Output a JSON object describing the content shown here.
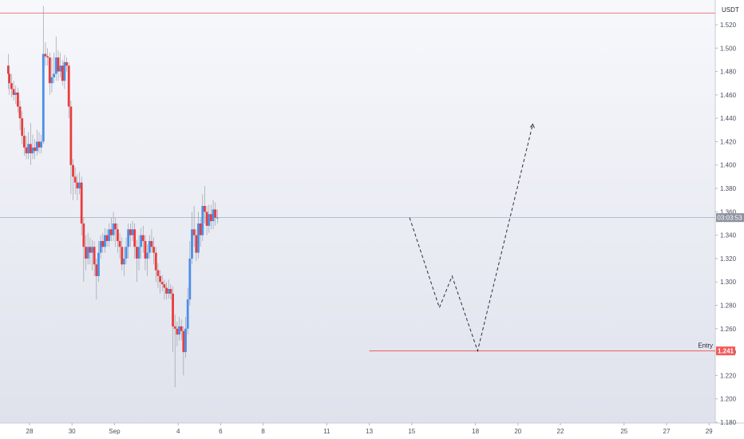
{
  "chart_data": {
    "type": "candlestick",
    "currency": "USDT",
    "y_range": [
      1.18,
      1.535
    ],
    "y_ticks": [
      "1.180",
      "1.200",
      "1.220",
      "1.240",
      "1.260",
      "1.280",
      "1.300",
      "1.320",
      "1.340",
      "1.360",
      "1.380",
      "1.400",
      "1.420",
      "1.440",
      "1.460",
      "1.480",
      "1.500",
      "1.520"
    ],
    "x_ticks": [
      {
        "label": "28",
        "t": 0
      },
      {
        "label": "30",
        "t": 2
      },
      {
        "label": "Sep",
        "t": 4
      },
      {
        "label": "4",
        "t": 7
      },
      {
        "label": "6",
        "t": 9
      },
      {
        "label": "8",
        "t": 11
      },
      {
        "label": "11",
        "t": 14
      },
      {
        "label": "13",
        "t": 16
      },
      {
        "label": "15",
        "t": 18
      },
      {
        "label": "18",
        "t": 21
      },
      {
        "label": "20",
        "t": 23
      },
      {
        "label": "22",
        "t": 25
      },
      {
        "label": "25",
        "t": 28
      },
      {
        "label": "27",
        "t": 30
      },
      {
        "label": "29",
        "t": 32
      }
    ],
    "current_price": {
      "label": "03:03:53",
      "value": 1.355
    },
    "resistance_line": {
      "value": 1.53
    },
    "entry": {
      "label": "Entry",
      "price_label": "1.241",
      "value": 1.241,
      "t_start": 16.0
    },
    "projection": [
      {
        "t": 17.9,
        "v": 1.355
      },
      {
        "t": 19.3,
        "v": 1.278
      },
      {
        "t": 19.9,
        "v": 1.305
      },
      {
        "t": 21.1,
        "v": 1.241
      },
      {
        "t": 23.7,
        "v": 1.435
      }
    ],
    "candles": [
      [
        -1.0,
        1.485,
        1.478,
        1.495,
        1.465
      ],
      [
        -0.95,
        1.478,
        1.47,
        1.485,
        1.46
      ],
      [
        -0.85,
        1.47,
        1.465,
        1.478,
        1.458
      ],
      [
        -0.75,
        1.465,
        1.46,
        1.472,
        1.455
      ],
      [
        -0.65,
        1.46,
        1.462,
        1.468,
        1.452
      ],
      [
        -0.55,
        1.462,
        1.45,
        1.466,
        1.445
      ],
      [
        -0.45,
        1.45,
        1.44,
        1.455,
        1.43
      ],
      [
        -0.35,
        1.44,
        1.425,
        1.446,
        1.418
      ],
      [
        -0.25,
        1.425,
        1.415,
        1.432,
        1.408
      ],
      [
        -0.15,
        1.415,
        1.41,
        1.425,
        1.405
      ],
      [
        -0.05,
        1.41,
        1.418,
        1.428,
        1.405
      ],
      [
        0.05,
        1.418,
        1.41,
        1.436,
        1.4
      ],
      [
        0.15,
        1.41,
        1.415,
        1.426,
        1.405
      ],
      [
        0.25,
        1.415,
        1.412,
        1.422,
        1.405
      ],
      [
        0.35,
        1.412,
        1.42,
        1.43,
        1.408
      ],
      [
        0.45,
        1.42,
        1.415,
        1.428,
        1.41
      ],
      [
        0.55,
        1.415,
        1.42,
        1.426,
        1.41
      ],
      [
        0.65,
        1.42,
        1.495,
        1.536,
        1.418
      ],
      [
        0.75,
        1.495,
        1.493,
        1.505,
        1.485
      ],
      [
        0.85,
        1.493,
        1.492,
        1.5,
        1.485
      ],
      [
        0.95,
        1.492,
        1.47,
        1.496,
        1.46
      ],
      [
        1.05,
        1.47,
        1.475,
        1.492,
        1.462
      ],
      [
        1.15,
        1.475,
        1.478,
        1.496,
        1.47
      ],
      [
        1.25,
        1.478,
        1.492,
        1.51,
        1.472
      ],
      [
        1.35,
        1.492,
        1.48,
        1.498,
        1.472
      ],
      [
        1.45,
        1.48,
        1.485,
        1.496,
        1.475
      ],
      [
        1.55,
        1.485,
        1.472,
        1.49,
        1.468
      ],
      [
        1.65,
        1.472,
        1.488,
        1.494,
        1.465
      ],
      [
        1.75,
        1.488,
        1.485,
        1.492,
        1.48
      ],
      [
        1.85,
        1.485,
        1.45,
        1.488,
        1.44
      ],
      [
        1.95,
        1.45,
        1.4,
        1.455,
        1.375
      ],
      [
        2.05,
        1.4,
        1.39,
        1.405,
        1.37
      ],
      [
        2.15,
        1.39,
        1.385,
        1.398,
        1.375
      ],
      [
        2.25,
        1.385,
        1.38,
        1.392,
        1.37
      ],
      [
        2.35,
        1.38,
        1.385,
        1.394,
        1.375
      ],
      [
        2.45,
        1.385,
        1.35,
        1.39,
        1.34
      ],
      [
        2.55,
        1.35,
        1.33,
        1.355,
        1.3
      ],
      [
        2.65,
        1.33,
        1.32,
        1.34,
        1.31
      ],
      [
        2.75,
        1.32,
        1.33,
        1.342,
        1.315
      ],
      [
        2.85,
        1.33,
        1.325,
        1.338,
        1.315
      ],
      [
        2.95,
        1.325,
        1.33,
        1.336,
        1.31
      ],
      [
        3.05,
        1.33,
        1.315,
        1.335,
        1.305
      ],
      [
        3.15,
        1.315,
        1.305,
        1.32,
        1.285
      ],
      [
        3.25,
        1.305,
        1.325,
        1.335,
        1.3
      ],
      [
        3.35,
        1.325,
        1.335,
        1.34,
        1.32
      ],
      [
        3.45,
        1.335,
        1.33,
        1.342,
        1.325
      ],
      [
        3.55,
        1.33,
        1.34,
        1.346,
        1.325
      ],
      [
        3.65,
        1.34,
        1.335,
        1.345,
        1.33
      ],
      [
        3.75,
        1.335,
        1.345,
        1.35,
        1.33
      ],
      [
        3.85,
        1.345,
        1.34,
        1.355,
        1.335
      ],
      [
        3.95,
        1.34,
        1.35,
        1.36,
        1.335
      ],
      [
        4.05,
        1.35,
        1.345,
        1.355,
        1.33
      ],
      [
        4.15,
        1.345,
        1.335,
        1.35,
        1.325
      ],
      [
        4.25,
        1.335,
        1.33,
        1.342,
        1.32
      ],
      [
        4.35,
        1.33,
        1.315,
        1.338,
        1.31
      ],
      [
        4.45,
        1.315,
        1.32,
        1.33,
        1.305
      ],
      [
        4.55,
        1.32,
        1.33,
        1.338,
        1.315
      ],
      [
        4.65,
        1.33,
        1.345,
        1.35,
        1.32
      ],
      [
        4.75,
        1.345,
        1.34,
        1.35,
        1.33
      ],
      [
        4.85,
        1.34,
        1.345,
        1.352,
        1.335
      ],
      [
        4.95,
        1.345,
        1.33,
        1.35,
        1.32
      ],
      [
        5.05,
        1.33,
        1.32,
        1.336,
        1.3
      ],
      [
        5.15,
        1.32,
        1.33,
        1.34,
        1.31
      ],
      [
        5.25,
        1.33,
        1.34,
        1.346,
        1.32
      ],
      [
        5.35,
        1.34,
        1.335,
        1.348,
        1.325
      ],
      [
        5.45,
        1.335,
        1.32,
        1.34,
        1.31
      ],
      [
        5.55,
        1.32,
        1.325,
        1.332,
        1.305
      ],
      [
        5.65,
        1.325,
        1.335,
        1.34,
        1.32
      ],
      [
        5.75,
        1.335,
        1.33,
        1.345,
        1.325
      ],
      [
        5.85,
        1.33,
        1.325,
        1.338,
        1.315
      ],
      [
        5.95,
        1.325,
        1.31,
        1.33,
        1.3
      ],
      [
        6.05,
        1.31,
        1.305,
        1.316,
        1.295
      ],
      [
        6.15,
        1.305,
        1.3,
        1.31,
        1.29
      ],
      [
        6.25,
        1.3,
        1.298,
        1.306,
        1.292
      ],
      [
        6.35,
        1.298,
        1.295,
        1.302,
        1.285
      ],
      [
        6.45,
        1.295,
        1.29,
        1.3,
        1.285
      ],
      [
        6.55,
        1.29,
        1.294,
        1.302,
        1.286
      ],
      [
        6.65,
        1.294,
        1.29,
        1.298,
        1.285
      ],
      [
        6.75,
        1.29,
        1.262,
        1.296,
        1.24
      ],
      [
        6.85,
        1.262,
        1.26,
        1.272,
        1.21
      ],
      [
        6.95,
        1.26,
        1.255,
        1.266,
        1.245
      ],
      [
        7.05,
        1.255,
        1.262,
        1.27,
        1.25
      ],
      [
        7.15,
        1.262,
        1.258,
        1.268,
        1.25
      ],
      [
        7.25,
        1.258,
        1.24,
        1.262,
        1.22
      ],
      [
        7.35,
        1.24,
        1.26,
        1.27,
        1.235
      ],
      [
        7.45,
        1.26,
        1.285,
        1.295,
        1.255
      ],
      [
        7.55,
        1.285,
        1.32,
        1.335,
        1.28
      ],
      [
        7.65,
        1.32,
        1.345,
        1.36,
        1.315
      ],
      [
        7.75,
        1.345,
        1.34,
        1.365,
        1.33
      ],
      [
        7.85,
        1.34,
        1.325,
        1.345,
        1.318
      ],
      [
        7.95,
        1.325,
        1.35,
        1.36,
        1.32
      ],
      [
        8.05,
        1.35,
        1.34,
        1.355,
        1.33
      ],
      [
        8.15,
        1.34,
        1.365,
        1.375,
        1.335
      ],
      [
        8.25,
        1.365,
        1.36,
        1.382,
        1.35
      ],
      [
        8.35,
        1.36,
        1.348,
        1.365,
        1.34
      ],
      [
        8.45,
        1.348,
        1.358,
        1.366,
        1.342
      ],
      [
        8.55,
        1.358,
        1.352,
        1.366,
        1.345
      ],
      [
        8.65,
        1.352,
        1.362,
        1.37,
        1.345
      ],
      [
        8.75,
        1.362,
        1.355,
        1.368,
        1.348
      ],
      [
        8.85,
        1.355,
        1.355,
        1.362,
        1.35
      ]
    ]
  }
}
